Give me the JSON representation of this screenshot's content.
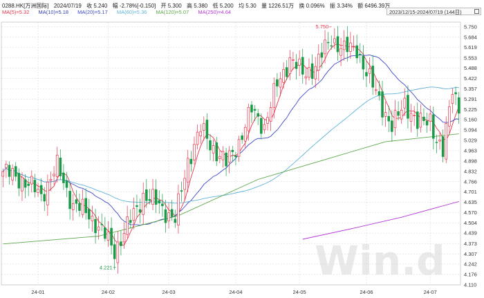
{
  "header": {
    "code": "0288.HK[万洲国际]",
    "date": "2024/07/19",
    "close": "收 5.240",
    "change": "幅 -2.78%[-0.150]",
    "open": "开 5.300",
    "high": "高 5.380",
    "low": "低 5.200",
    "avg": "均 5.30",
    "volume": "量 1226.51万",
    "turnover": "换 0.096%",
    "swing": "振 3.34%",
    "amount": "额 6496.39万",
    "range": "2023/12/15-2024/07/19 (144日)"
  },
  "legend": [
    {
      "text": "MA(5)=5.32",
      "color": "#e8334a"
    },
    {
      "text": "MA(10)=5.18",
      "color": "#2f3fb0"
    },
    {
      "text": "MA(20)=5.17",
      "color": "#3b46c9"
    },
    {
      "text": "MA(60)=5.36",
      "color": "#5fb2d9"
    },
    {
      "text": "MA(120)=5.07",
      "color": "#5aa84a"
    },
    {
      "text": "MA(250)=4.64",
      "color": "#b637d6"
    }
  ],
  "colors": {
    "up": "#e8334a",
    "down": "#1a9b47",
    "grid": "#d9d9d9"
  },
  "chart_data": {
    "type": "candlestick",
    "ylim": [
      4.11,
      5.78
    ],
    "y_ticks": [
      "5.750",
      "5.684",
      "5.619",
      "5.553",
      "5.488",
      "5.422",
      "5.357",
      "5.291",
      "5.225",
      "5.160",
      "5.094",
      "5.029",
      "4.963",
      "4.898",
      "4.832",
      "4.766",
      "4.701",
      "4.635",
      "4.570",
      "4.504",
      "4.439",
      "4.373",
      "4.307",
      "4.242",
      "4.176",
      "4.110"
    ],
    "x_ticks": [
      {
        "label": "24-01",
        "index": 11
      },
      {
        "label": "24-02",
        "index": 33
      },
      {
        "label": "24-03",
        "index": 52
      },
      {
        "label": "24-04",
        "index": 73
      },
      {
        "label": "24-05",
        "index": 93
      },
      {
        "label": "24-06",
        "index": 114
      },
      {
        "label": "24-07",
        "index": 134
      }
    ],
    "annotations": [
      {
        "text": "5.750",
        "index": 103,
        "value": 5.75,
        "kind": "high"
      },
      {
        "text": "4.221",
        "index": 35,
        "value": 4.221,
        "kind": "low"
      }
    ],
    "key_points": [
      {
        "i": 0,
        "v": 4.83
      },
      {
        "i": 6,
        "v": 4.78
      },
      {
        "i": 12,
        "v": 4.68
      },
      {
        "i": 17,
        "v": 4.86
      },
      {
        "i": 22,
        "v": 4.62
      },
      {
        "i": 27,
        "v": 4.56
      },
      {
        "i": 31,
        "v": 4.45
      },
      {
        "i": 35,
        "v": 4.33
      },
      {
        "i": 39,
        "v": 4.48
      },
      {
        "i": 44,
        "v": 4.68
      },
      {
        "i": 49,
        "v": 4.62
      },
      {
        "i": 54,
        "v": 4.52
      },
      {
        "i": 58,
        "v": 4.9
      },
      {
        "i": 62,
        "v": 5.1
      },
      {
        "i": 66,
        "v": 4.98
      },
      {
        "i": 70,
        "v": 4.88
      },
      {
        "i": 74,
        "v": 5.02
      },
      {
        "i": 78,
        "v": 5.22
      },
      {
        "i": 82,
        "v": 5.12
      },
      {
        "i": 86,
        "v": 5.38
      },
      {
        "i": 90,
        "v": 5.55
      },
      {
        "i": 94,
        "v": 5.45
      },
      {
        "i": 98,
        "v": 5.5
      },
      {
        "i": 103,
        "v": 5.68
      },
      {
        "i": 107,
        "v": 5.6
      },
      {
        "i": 111,
        "v": 5.62
      },
      {
        "i": 114,
        "v": 5.45
      },
      {
        "i": 118,
        "v": 5.3
      },
      {
        "i": 122,
        "v": 5.1
      },
      {
        "i": 126,
        "v": 5.28
      },
      {
        "i": 130,
        "v": 5.12
      },
      {
        "i": 134,
        "v": 5.18
      },
      {
        "i": 136,
        "v": 5.02
      },
      {
        "i": 138,
        "v": 4.94
      },
      {
        "i": 141,
        "v": 5.38
      },
      {
        "i": 143,
        "v": 5.24
      }
    ],
    "n_points": 144,
    "moving_averages": [
      {
        "name": "MA(5)",
        "window": 5,
        "color": "#e8334a"
      },
      {
        "name": "MA(20)",
        "window": 20,
        "color": "#3b46c9"
      },
      {
        "name": "MA(60)",
        "window": 60,
        "color": "#5fb2d9"
      },
      {
        "name": "MA(120)",
        "points": [
          [
            0,
            4.37
          ],
          [
            30,
            4.42
          ],
          [
            55,
            4.55
          ],
          [
            80,
            4.78
          ],
          [
            100,
            4.9
          ],
          [
            120,
            5.02
          ],
          [
            143,
            5.07
          ]
        ],
        "color": "#5aa84a"
      },
      {
        "name": "MA(250)",
        "points": [
          [
            94,
            4.4
          ],
          [
            110,
            4.47
          ],
          [
            125,
            4.54
          ],
          [
            143,
            4.64
          ]
        ],
        "color": "#b637d6"
      }
    ]
  }
}
